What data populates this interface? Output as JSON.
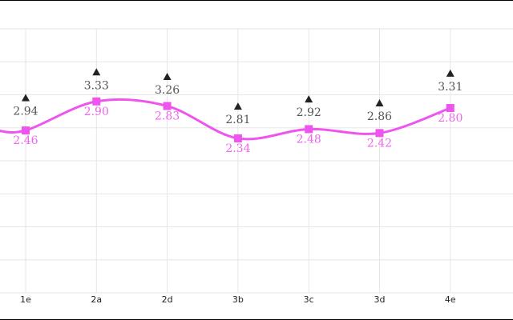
{
  "chart_data": {
    "type": "line",
    "categories": [
      "1e",
      "2a",
      "2d",
      "3b",
      "3c",
      "3d",
      "4e"
    ],
    "ylim": [
      0,
      4.0
    ],
    "grid": true,
    "series": [
      {
        "marker": "triangle",
        "line": false,
        "color": "#222222",
        "label_color": "#555555",
        "values": [
          2.94,
          3.33,
          3.26,
          2.81,
          2.92,
          2.86,
          3.31
        ],
        "labels": [
          "2.94",
          "3.33",
          "3.26",
          "2.81",
          "2.92",
          "2.86",
          "3.31"
        ]
      },
      {
        "marker": "square",
        "line": true,
        "smooth": true,
        "color": "#ee55ee",
        "label_color": "#ee66ee",
        "values": [
          2.46,
          2.9,
          2.83,
          2.34,
          2.48,
          2.42,
          2.8
        ],
        "labels": [
          "2.46",
          "2.90",
          "2.83",
          "2.34",
          "2.48",
          "2.42",
          "2.80"
        ]
      }
    ]
  }
}
